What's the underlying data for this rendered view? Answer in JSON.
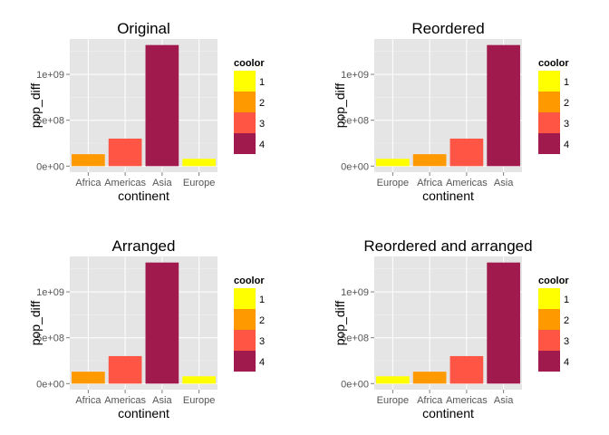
{
  "figure": {
    "colors": {
      "panel_background": "#E5E5E5",
      "gridline_major": "#FFFFFF",
      "gridline_minor": "#F2F2F2",
      "tick": "#7F7F7F"
    }
  },
  "legend": {
    "title": "coolor",
    "items": [
      {
        "label": "1",
        "color": "#FFFF00"
      },
      {
        "label": "2",
        "color": "#FF9900"
      },
      {
        "label": "3",
        "color": "#FF5544"
      },
      {
        "label": "4",
        "color": "#A01A4E"
      }
    ]
  },
  "chart_data": [
    {
      "type": "bar",
      "title": "Original",
      "xlabel": "continent",
      "ylabel": "pop_diff",
      "categories": [
        "Africa",
        "Americas",
        "Asia",
        "Europe"
      ],
      "values": [
        130000000,
        300000000,
        1320000000,
        80000000
      ],
      "colors": [
        "2",
        "3",
        "4",
        "1"
      ],
      "yticks": [
        0,
        500000000,
        1000000000
      ],
      "ytick_labels": [
        "0e+00",
        "5e+08",
        "1e+09"
      ],
      "ylim": [
        -66000000,
        1386000000
      ],
      "grid": true,
      "legend_position": "right"
    },
    {
      "type": "bar",
      "title": "Reordered",
      "xlabel": "continent",
      "ylabel": "pop_diff",
      "categories": [
        "Europe",
        "Africa",
        "Americas",
        "Asia"
      ],
      "values": [
        80000000,
        130000000,
        300000000,
        1320000000
      ],
      "colors": [
        "1",
        "2",
        "3",
        "4"
      ],
      "yticks": [
        0,
        500000000,
        1000000000
      ],
      "ytick_labels": [
        "0e+00",
        "5e+08",
        "1e+09"
      ],
      "ylim": [
        -66000000,
        1386000000
      ],
      "grid": true,
      "legend_position": "right"
    },
    {
      "type": "bar",
      "title": "Arranged",
      "xlabel": "continent",
      "ylabel": "pop_diff",
      "categories": [
        "Africa",
        "Americas",
        "Asia",
        "Europe"
      ],
      "values": [
        130000000,
        300000000,
        1320000000,
        80000000
      ],
      "colors": [
        "2",
        "3",
        "4",
        "1"
      ],
      "yticks": [
        0,
        500000000,
        1000000000
      ],
      "ytick_labels": [
        "0e+00",
        "5e+08",
        "1e+09"
      ],
      "ylim": [
        -66000000,
        1386000000
      ],
      "grid": true,
      "legend_position": "right"
    },
    {
      "type": "bar",
      "title": "Reordered and arranged",
      "xlabel": "continent",
      "ylabel": "pop_diff",
      "categories": [
        "Europe",
        "Africa",
        "Americas",
        "Asia"
      ],
      "values": [
        80000000,
        130000000,
        300000000,
        1320000000
      ],
      "colors": [
        "1",
        "2",
        "3",
        "4"
      ],
      "yticks": [
        0,
        500000000,
        1000000000
      ],
      "ytick_labels": [
        "0e+00",
        "5e+08",
        "1e+09"
      ],
      "ylim": [
        -66000000,
        1386000000
      ],
      "grid": true,
      "legend_position": "right"
    }
  ]
}
